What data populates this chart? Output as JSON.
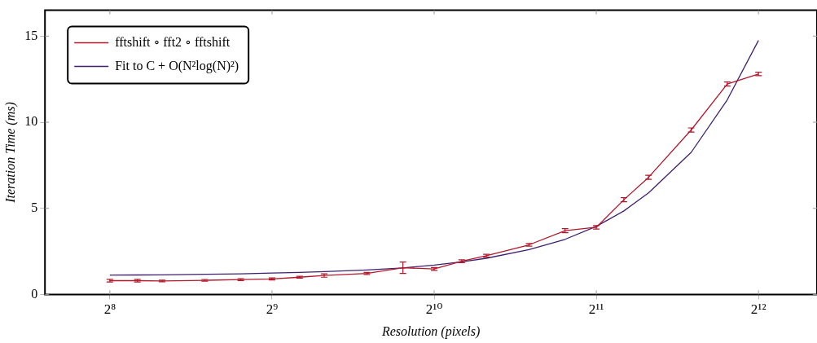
{
  "chart_data": {
    "type": "line",
    "xlabel": "Resolution (pixels)",
    "ylabel": "Iteration Time (ms)",
    "log": "x",
    "xlim": [
      194,
      5260
    ],
    "xticks": [
      {
        "value": 256,
        "label": "2⁸"
      },
      {
        "value": 512,
        "label": "2⁹"
      },
      {
        "value": 1024,
        "label": "2¹⁰"
      },
      {
        "value": 2048,
        "label": "2¹¹"
      },
      {
        "value": 4096,
        "label": "2¹²"
      }
    ],
    "ylim": [
      0,
      16.5
    ],
    "yticks": [
      0,
      5,
      10,
      15
    ],
    "grid": false,
    "legend": "top left",
    "marker": "none",
    "line_style": "solid",
    "x": [
      256,
      288,
      320,
      384,
      448,
      512,
      576,
      640,
      768,
      896,
      1024,
      1152,
      1280,
      1536,
      1792,
      2048,
      2304,
      2560,
      3072,
      3584,
      4096
    ],
    "series": [
      {
        "name": "fftshift ∘ fft2 ∘ fftshift",
        "color": "#b2182b",
        "values": [
          0.8,
          0.8,
          0.78,
          0.82,
          0.86,
          0.9,
          1.0,
          1.1,
          1.22,
          1.55,
          1.48,
          1.93,
          2.25,
          2.88,
          3.7,
          3.9,
          5.5,
          6.8,
          9.55,
          12.22,
          12.8
        ],
        "errors": [
          0.08,
          0.08,
          0.05,
          0.05,
          0.05,
          0.06,
          0.05,
          0.1,
          0.06,
          0.33,
          0.08,
          0.08,
          0.08,
          0.08,
          0.12,
          0.1,
          0.12,
          0.12,
          0.12,
          0.12,
          0.1
        ]
      },
      {
        "name": "Fit to C + O(N²log(N)²)",
        "color": "#3f1f6e",
        "values": [
          1.12,
          1.13,
          1.14,
          1.17,
          1.2,
          1.24,
          1.28,
          1.33,
          1.42,
          1.54,
          1.7,
          1.89,
          2.1,
          2.6,
          3.2,
          3.95,
          4.85,
          5.9,
          8.25,
          11.3,
          14.75
        ]
      }
    ]
  }
}
